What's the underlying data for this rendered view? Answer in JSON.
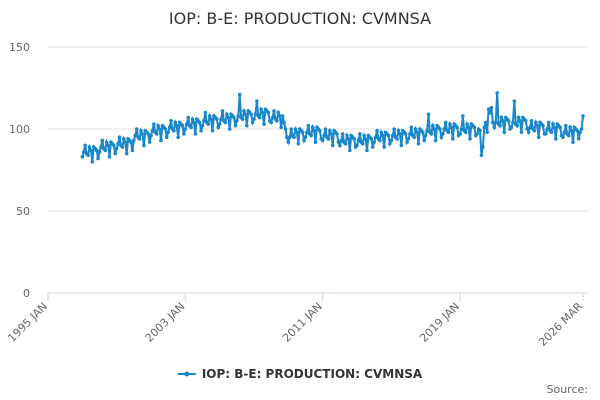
{
  "chart_data": {
    "type": "line",
    "title": "IOP: B-E: PRODUCTION: CVMNSA",
    "source_label": "Source:",
    "xlim": [
      "1995-01",
      "2026-03"
    ],
    "xticks": [
      {
        "value": "1995-01",
        "label": "1995 JAN"
      },
      {
        "value": "2003-01",
        "label": "2003 JAN"
      },
      {
        "value": "2011-01",
        "label": "2011 JAN"
      },
      {
        "value": "2019-01",
        "label": "2019 JAN"
      },
      {
        "value": "2026-03",
        "label": "2026 MAR"
      }
    ],
    "ylim": [
      0,
      150
    ],
    "yticks": [
      0,
      50,
      100,
      150
    ],
    "grid": true,
    "x": [
      "1997-01",
      "1997-02",
      "1997-03",
      "1997-04",
      "1997-05",
      "1997-06",
      "1997-07",
      "1997-08",
      "1997-09",
      "1997-10",
      "1997-11",
      "1997-12",
      "1998-01",
      "1998-02",
      "1998-03",
      "1998-04",
      "1998-05",
      "1998-06",
      "1998-07",
      "1998-08",
      "1998-09",
      "1998-10",
      "1998-11",
      "1998-12",
      "1999-01",
      "1999-02",
      "1999-03",
      "1999-04",
      "1999-05",
      "1999-06",
      "1999-07",
      "1999-08",
      "1999-09",
      "1999-10",
      "1999-11",
      "1999-12",
      "2000-01",
      "2000-02",
      "2000-03",
      "2000-04",
      "2000-05",
      "2000-06",
      "2000-07",
      "2000-08",
      "2000-09",
      "2000-10",
      "2000-11",
      "2000-12",
      "2001-01",
      "2001-02",
      "2001-03",
      "2001-04",
      "2001-05",
      "2001-06",
      "2001-07",
      "2001-08",
      "2001-09",
      "2001-10",
      "2001-11",
      "2001-12",
      "2002-01",
      "2002-02",
      "2002-03",
      "2002-04",
      "2002-05",
      "2002-06",
      "2002-07",
      "2002-08",
      "2002-09",
      "2002-10",
      "2002-11",
      "2002-12",
      "2003-01",
      "2003-02",
      "2003-03",
      "2003-04",
      "2003-05",
      "2003-06",
      "2003-07",
      "2003-08",
      "2003-09",
      "2003-10",
      "2003-11",
      "2003-12",
      "2004-01",
      "2004-02",
      "2004-03",
      "2004-04",
      "2004-05",
      "2004-06",
      "2004-07",
      "2004-08",
      "2004-09",
      "2004-10",
      "2004-11",
      "2004-12",
      "2005-01",
      "2005-02",
      "2005-03",
      "2005-04",
      "2005-05",
      "2005-06",
      "2005-07",
      "2005-08",
      "2005-09",
      "2005-10",
      "2005-11",
      "2005-12",
      "2006-01",
      "2006-02",
      "2006-03",
      "2006-04",
      "2006-05",
      "2006-06",
      "2006-07",
      "2006-08",
      "2006-09",
      "2006-10",
      "2006-11",
      "2006-12",
      "2007-01",
      "2007-02",
      "2007-03",
      "2007-04",
      "2007-05",
      "2007-06",
      "2007-07",
      "2007-08",
      "2007-09",
      "2007-10",
      "2007-11",
      "2007-12",
      "2008-01",
      "2008-02",
      "2008-03",
      "2008-04",
      "2008-05",
      "2008-06",
      "2008-07",
      "2008-08",
      "2008-09",
      "2008-10",
      "2008-11",
      "2008-12",
      "2009-01",
      "2009-02",
      "2009-03",
      "2009-04",
      "2009-05",
      "2009-06",
      "2009-07",
      "2009-08",
      "2009-09",
      "2009-10",
      "2009-11",
      "2009-12",
      "2010-01",
      "2010-02",
      "2010-03",
      "2010-04",
      "2010-05",
      "2010-06",
      "2010-07",
      "2010-08",
      "2010-09",
      "2010-10",
      "2010-11",
      "2010-12",
      "2011-01",
      "2011-02",
      "2011-03",
      "2011-04",
      "2011-05",
      "2011-06",
      "2011-07",
      "2011-08",
      "2011-09",
      "2011-10",
      "2011-11",
      "2011-12",
      "2012-01",
      "2012-02",
      "2012-03",
      "2012-04",
      "2012-05",
      "2012-06",
      "2012-07",
      "2012-08",
      "2012-09",
      "2012-10",
      "2012-11",
      "2012-12",
      "2013-01",
      "2013-02",
      "2013-03",
      "2013-04",
      "2013-05",
      "2013-06",
      "2013-07",
      "2013-08",
      "2013-09",
      "2013-10",
      "2013-11",
      "2013-12",
      "2014-01",
      "2014-02",
      "2014-03",
      "2014-04",
      "2014-05",
      "2014-06",
      "2014-07",
      "2014-08",
      "2014-09",
      "2014-10",
      "2014-11",
      "2014-12",
      "2015-01",
      "2015-02",
      "2015-03",
      "2015-04",
      "2015-05",
      "2015-06",
      "2015-07",
      "2015-08",
      "2015-09",
      "2015-10",
      "2015-11",
      "2015-12",
      "2016-01",
      "2016-02",
      "2016-03",
      "2016-04",
      "2016-05",
      "2016-06",
      "2016-07",
      "2016-08",
      "2016-09",
      "2016-10",
      "2016-11",
      "2016-12",
      "2017-01",
      "2017-02",
      "2017-03",
      "2017-04",
      "2017-05",
      "2017-06",
      "2017-07",
      "2017-08",
      "2017-09",
      "2017-10",
      "2017-11",
      "2017-12",
      "2018-01",
      "2018-02",
      "2018-03",
      "2018-04",
      "2018-05",
      "2018-06",
      "2018-07",
      "2018-08",
      "2018-09",
      "2018-10",
      "2018-11",
      "2018-12",
      "2019-01",
      "2019-02",
      "2019-03",
      "2019-04",
      "2019-05",
      "2019-06",
      "2019-07",
      "2019-08",
      "2019-09",
      "2019-10",
      "2019-11",
      "2019-12",
      "2020-01",
      "2020-02",
      "2020-03",
      "2020-04",
      "2020-05",
      "2020-06",
      "2020-07",
      "2020-08",
      "2020-09",
      "2020-10",
      "2020-11",
      "2020-12",
      "2021-01",
      "2021-02",
      "2021-03",
      "2021-04",
      "2021-05",
      "2021-06",
      "2021-07",
      "2021-08",
      "2021-09",
      "2021-10",
      "2021-11",
      "2021-12",
      "2022-01",
      "2022-02",
      "2022-03",
      "2022-04",
      "2022-05",
      "2022-06",
      "2022-07",
      "2022-08",
      "2022-09",
      "2022-10",
      "2022-11",
      "2022-12",
      "2023-01",
      "2023-02",
      "2023-03",
      "2023-04",
      "2023-05",
      "2023-06",
      "2023-07",
      "2023-08",
      "2023-09",
      "2023-10",
      "2023-11",
      "2023-12",
      "2024-01",
      "2024-02",
      "2024-03",
      "2024-04",
      "2024-05",
      "2024-06",
      "2024-07",
      "2024-08",
      "2024-09",
      "2024-10",
      "2024-11",
      "2024-12",
      "2025-01",
      "2025-02",
      "2025-03",
      "2025-04",
      "2025-05",
      "2025-06",
      "2025-07",
      "2025-08",
      "2025-09",
      "2025-10",
      "2025-11",
      "2025-12",
      "2026-01",
      "2026-02",
      "2026-03"
    ],
    "series": [
      {
        "name": "IOP: B-E: PRODUCTION: CVMNSA",
        "color": "#1a87c8",
        "values": [
          83,
          86,
          90,
          85,
          84,
          89,
          87,
          80,
          89,
          88,
          87,
          82,
          86,
          89,
          93,
          88,
          87,
          92,
          90,
          83,
          92,
          91,
          90,
          85,
          88,
          91,
          95,
          90,
          89,
          94,
          92,
          85,
          94,
          93,
          92,
          87,
          93,
          96,
          100,
          95,
          94,
          99,
          97,
          90,
          99,
          98,
          97,
          92,
          96,
          99,
          103,
          98,
          97,
          102,
          100,
          93,
          102,
          101,
          100,
          95,
          98,
          101,
          105,
          100,
          99,
          104,
          102,
          95,
          104,
          103,
          102,
          97,
          100,
          103,
          107,
          102,
          101,
          106,
          104,
          97,
          106,
          105,
          104,
          99,
          102,
          105,
          110,
          104,
          103,
          108,
          106,
          99,
          108,
          107,
          106,
          101,
          103,
          106,
          111,
          105,
          104,
          109,
          107,
          100,
          109,
          108,
          107,
          102,
          105,
          108,
          121,
          107,
          106,
          111,
          109,
          102,
          111,
          110,
          109,
          104,
          106,
          109,
          117,
          108,
          107,
          112,
          110,
          103,
          112,
          111,
          110,
          105,
          104,
          107,
          111,
          106,
          105,
          110,
          108,
          101,
          108,
          104,
          100,
          95,
          92,
          95,
          100,
          96,
          95,
          100,
          98,
          91,
          100,
          99,
          98,
          93,
          95,
          98,
          102,
          97,
          96,
          101,
          99,
          92,
          101,
          100,
          99,
          94,
          93,
          96,
          100,
          95,
          94,
          99,
          97,
          90,
          99,
          98,
          97,
          92,
          90,
          93,
          97,
          92,
          91,
          96,
          94,
          87,
          96,
          95,
          94,
          89,
          90,
          93,
          97,
          92,
          91,
          96,
          94,
          87,
          96,
          95,
          94,
          89,
          92,
          95,
          99,
          94,
          93,
          98,
          96,
          89,
          98,
          97,
          96,
          91,
          93,
          96,
          100,
          95,
          94,
          99,
          97,
          90,
          99,
          98,
          97,
          92,
          94,
          97,
          101,
          96,
          95,
          100,
          98,
          91,
          100,
          99,
          98,
          93,
          96,
          99,
          109,
          98,
          97,
          102,
          100,
          93,
          102,
          101,
          100,
          95,
          97,
          100,
          104,
          99,
          98,
          103,
          101,
          94,
          103,
          102,
          101,
          96,
          97,
          100,
          108,
          99,
          98,
          103,
          101,
          94,
          103,
          102,
          101,
          96,
          97,
          100,
          99,
          84,
          89,
          101,
          104,
          98,
          112,
          110,
          113,
          104,
          101,
          104,
          122,
          103,
          102,
          107,
          105,
          98,
          107,
          106,
          105,
          100,
          101,
          104,
          117,
          103,
          102,
          107,
          105,
          98,
          107,
          106,
          105,
          100,
          98,
          101,
          105,
          100,
          99,
          104,
          102,
          95,
          104,
          103,
          102,
          97,
          97,
          100,
          104,
          99,
          98,
          103,
          101,
          94,
          103,
          102,
          101,
          96,
          95,
          98,
          102,
          97,
          96,
          101,
          99,
          92,
          101,
          100,
          99,
          94,
          98,
          100,
          108
        ]
      }
    ]
  }
}
